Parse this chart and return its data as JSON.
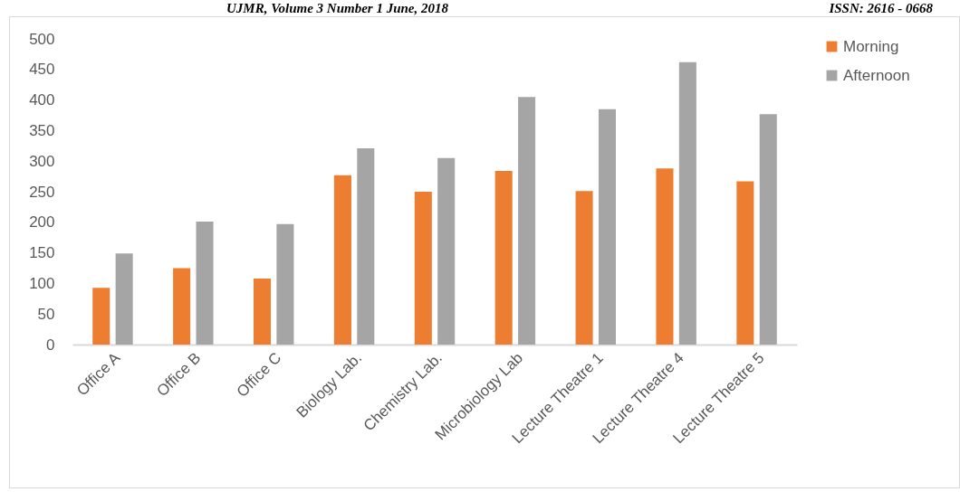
{
  "chart_data": {
    "type": "bar",
    "annotations": [
      "UJMR, Volume 3 Number 1 June, 2018",
      "ISSN: 2616 - 0668"
    ],
    "categories": [
      "Office A",
      "Office B",
      "Office C",
      "Biology Lab.",
      "Chemistry Lab.",
      "Microbiology Lab",
      "Lecture Theatre 1",
      "Lecture Theatre 4",
      "Lecture Theatre 5"
    ],
    "series": [
      {
        "name": "Morning",
        "color": "#ed7d31",
        "values": [
          93,
          125,
          108,
          277,
          250,
          284,
          251,
          288,
          267
        ]
      },
      {
        "name": "Afternoon",
        "color": "#a5a5a5",
        "values": [
          149,
          201,
          197,
          321,
          305,
          405,
          385,
          462,
          377
        ]
      }
    ],
    "ylim": [
      0,
      500
    ],
    "yticks": [
      0,
      50,
      100,
      150,
      200,
      250,
      300,
      350,
      400,
      450,
      500
    ],
    "grid": false,
    "legend": "right"
  }
}
